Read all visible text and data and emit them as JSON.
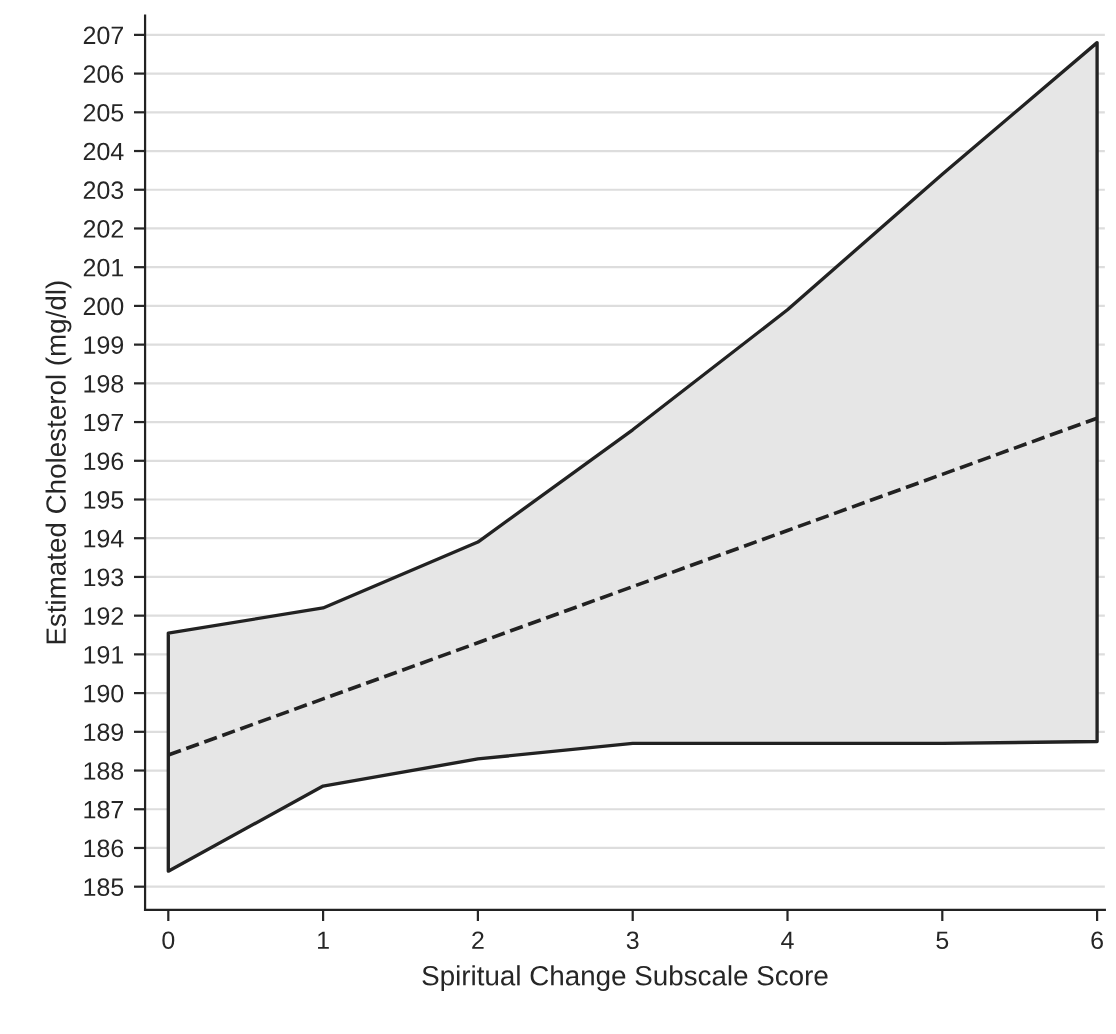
{
  "chart_data": {
    "type": "line",
    "xlabel": "Spiritual Change Subscale Score",
    "ylabel": "Estimated Cholesterol (mg/dl)",
    "x": [
      0,
      1,
      2,
      3,
      4,
      5,
      6
    ],
    "series": [
      {
        "color": "#222222",
        "line_style": "dashed",
        "values": [
          188.4,
          189.85,
          191.3,
          192.75,
          194.2,
          195.65,
          197.1
        ],
        "lower": [
          185.4,
          187.6,
          188.3,
          188.7,
          188.7,
          188.7,
          188.75
        ],
        "upper": [
          191.55,
          192.2,
          193.9,
          196.8,
          199.9,
          203.4,
          206.8
        ]
      }
    ],
    "xlim": [
      -0.15,
      6.05
    ],
    "xticks": [
      0,
      1,
      2,
      3,
      4,
      5,
      6
    ],
    "ylim": [
      184.4,
      207.5
    ],
    "yticks": [
      185,
      186,
      187,
      188,
      189,
      190,
      191,
      192,
      193,
      194,
      195,
      196,
      197,
      198,
      199,
      200,
      201,
      202,
      203,
      204,
      205,
      206,
      207
    ],
    "grid": "y",
    "marker": "none"
  }
}
